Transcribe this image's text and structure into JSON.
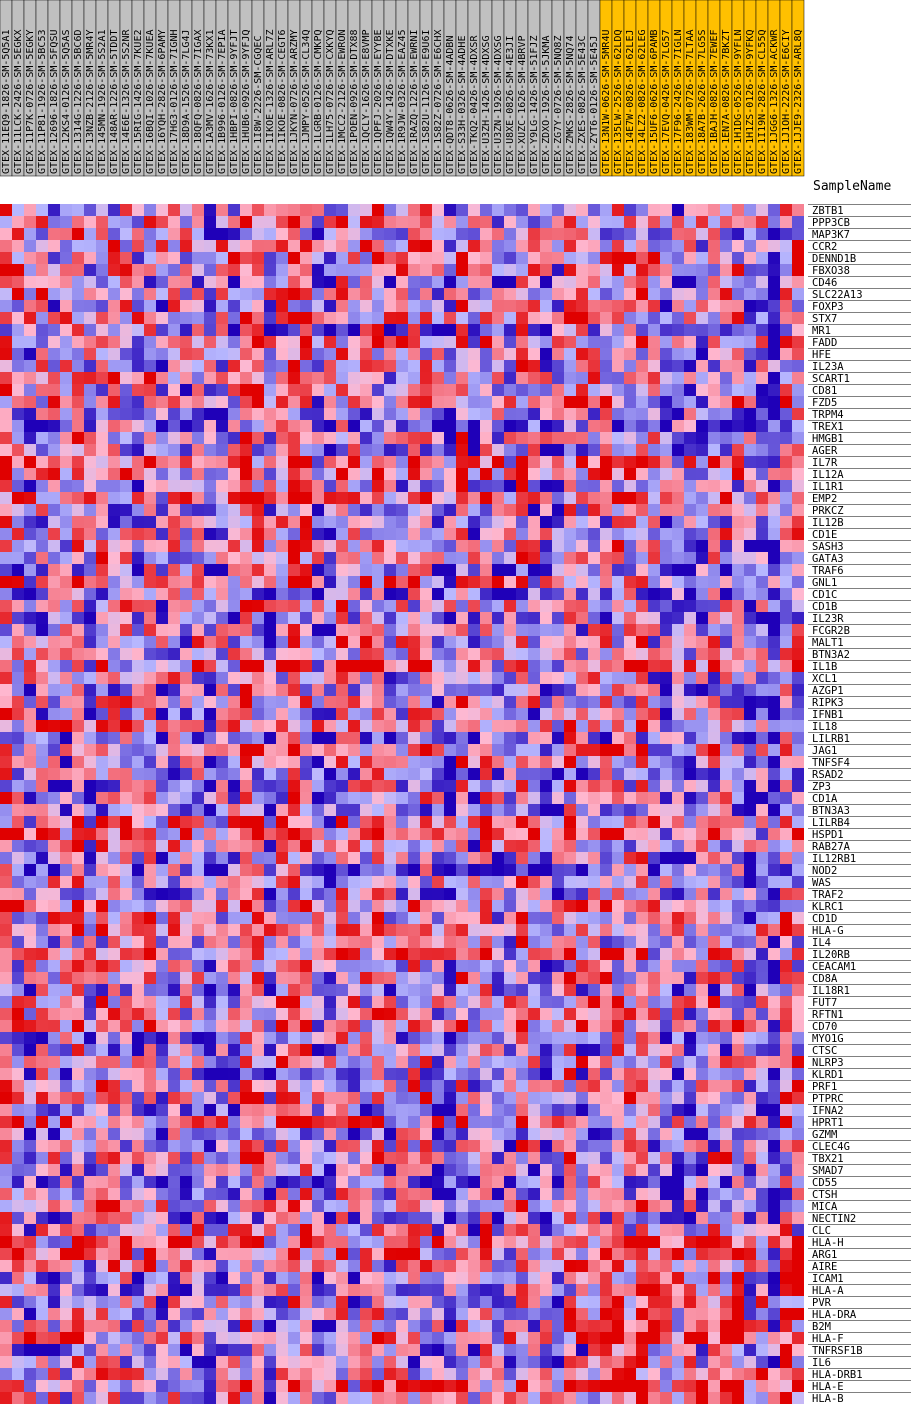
{
  "chart_data": {
    "type": "heatmap",
    "corner_label": "SampleName",
    "samples": [
      "GTEX-11EQ9-1826-SM-5Q5A1",
      "GTEX-11LCK-2426-SM-5EGKX",
      "GTEX-11P7K-0726-SM-5EGKY",
      "GTEX-11P81-1926-SM-5BC53",
      "GTEX-12696-1826-SM-5FQSU",
      "GTEX-12KS4-0126-SM-5Q5AS",
      "GTEX-1314G-1226-SM-5BC6D",
      "GTEX-13NZB-2126-SM-5MR4Y",
      "GTEX-145MN-1926-SM-5S2A1",
      "GTEX-148AR-1226-SM-5TDDT",
      "GTEX-14E6E-1326-SM-5S2NR",
      "GTEX-15RIG-1426-SM-7KUE2",
      "GTEX-16BQI-1026-SM-7KUEA",
      "GTEX-16YQH-2826-SM-6PAMY",
      "GTEX-17HG3-0126-SM-7IGNH",
      "GTEX-18D9A-1526-SM-7LG4J",
      "GTEX-18QFQ-0826-SM-7IGAX",
      "GTEX-1A3MV-1626-SM-73KX1",
      "GTEX-1B996-0126-SM-7EPIA",
      "GTEX-1HBPI-0826-SM-9YFJT",
      "GTEX-1HUB6-0926-SM-9YFJQ",
      "GTEX-1I8W-2226-SM-CGQEC",
      "GTEX-1IKOE-1326-SM-ARL7Z",
      "GTEX-1IKOE-0826-SM-CEGT6",
      "GTEX-1JKYN-0726-SM-ARZMY",
      "GTEX-1JMPY-0526-SM-CL34Q",
      "GTEX-1LGRB-0126-SM-CMKPQ",
      "GTEX-1LH75-0726-SM-CXKYQ",
      "GTEX-1MCC2-2126-SM-EWRON",
      "GTEX-1POEN-0926-SM-DTX88",
      "GTEX-1QCLY-1626-SM-E8VMP",
      "GTEX-1QPFJ-2026-SM-EYYBE",
      "GTEX-1QW4Y-1426-SM-DTXKE",
      "GTEX-1R9JW-0326-SM-EAZ45",
      "GTEX-1RAZQ-1226-SM-EWRNI",
      "GTEX-1S82U-1126-SM-E9U6I",
      "GTEX-1S82Z-0726-SM-E6CHX",
      "GTEX-QDT8-0626-SM-4ADBN",
      "GTEX-S33H-0326-SM-4ADHE",
      "GTEX-TKQ2-0426-SM-4DXSR",
      "GTEX-U3ZH-1426-SM-4DXSG",
      "GTEX-U3ZN-1926-SM-4DXSG",
      "GTEX-U8XE-0826-SM-4E3JI",
      "GTEX-XUZC-1626-SM-4BRVP",
      "GTEX-Y9LG-1426-SM-51FJZ",
      "GTEX-ZDXO-1926-SM-5JKMA",
      "GTEX-ZG7Y-0726-SM-5NQ8Z",
      "GTEX-ZMKS-2826-SM-5NQ74",
      "GTEX-ZXES-0826-SM-5E43C",
      "GTEX-ZYT6-0126-SM-5E45J",
      "GTEX-13N1W-0626-SM-5MR4U",
      "GTEX-135LW-2526-SM-62LDQ",
      "GTEX-14E7W-0826-SM-62LEJ",
      "GTEX-14LZ2-0826-SM-62LEG",
      "GTEX-15UF6-0626-SM-6PAMB",
      "GTEX-17EVQ-0426-SM-7LG57",
      "GTEX-17F96-2426-SM-7IGLN",
      "GTEX-183WM-0726-SM-7LTAA",
      "GTEX-18A7B-2626-SM-7LG5S",
      "GTEX-1BAJH-0826-SM-7EWEF",
      "GTEX-1EN7A-0826-SM-7BKZT",
      "GTEX-1H1DG-0526-SM-9YFLN",
      "GTEX-1H1ZS-0126-SM-9YFKQ",
      "GTEX-1I19N-2826-SM-CL55Q",
      "GTEX-1JGG6-1326-SM-ACKWR",
      "GTEX-1J1OH-2226-SM-E6CIY",
      "GTEX-1JJE9-2326-SM-ARL8Q"
    ],
    "highlighted_samples_from": 50,
    "genes": [
      "ZBTB1",
      "PPP3CB",
      "MAP3K7",
      "CCR2",
      "DENND1B",
      "FBXO38",
      "CD46",
      "SLC22A13",
      "FOXP3",
      "STX7",
      "MR1",
      "FADD",
      "HFE",
      "IL23A",
      "SCART1",
      "CD81",
      "FZD5",
      "TRPM4",
      "TREX1",
      "HMGB1",
      "AGER",
      "IL7R",
      "IL12A",
      "IL1R1",
      "EMP2",
      "PRKCZ",
      "IL12B",
      "CD1E",
      "SASH3",
      "GATA3",
      "TRAF6",
      "GNL1",
      "CD1C",
      "CD1B",
      "IL23R",
      "FCGR2B",
      "MALT1",
      "BTN3A2",
      "IL1B",
      "XCL1",
      "AZGP1",
      "RIPK3",
      "IFNB1",
      "IL18",
      "LILRB1",
      "JAG1",
      "TNFSF4",
      "RSAD2",
      "ZP3",
      "CD1A",
      "BTN3A3",
      "LILRB4",
      "HSPD1",
      "RAB27A",
      "IL12RB1",
      "NOD2",
      "WAS",
      "TRAF2",
      "KLRC1",
      "CD1D",
      "HLA-G",
      "IL4",
      "IL20RB",
      "CEACAM1",
      "CD8A",
      "IL18R1",
      "FUT7",
      "RFTN1",
      "CD70",
      "MYO1G",
      "CTSC",
      "NLRP3",
      "KLRD1",
      "PRF1",
      "PTPRC",
      "IFNA2",
      "HPRT1",
      "GZMM",
      "CLEC4G",
      "TBX21",
      "SMAD7",
      "CD55",
      "CTSH",
      "MICA",
      "NECTIN2",
      "CLC",
      "HLA-H",
      "ARG1",
      "AIRE",
      "ICAM1",
      "HLA-A",
      "PVR",
      "HLA-DRA",
      "B2M",
      "HLA-F",
      "TNFRSF1B",
      "IL6",
      "HLA-DRB1",
      "HLA-E",
      "HLA-B"
    ],
    "color_scale": {
      "low": "#1f00b8",
      "mid_low": "#b8b8ff",
      "mid_high": "#ffb8d0",
      "high": "#e00000",
      "sample_label_bg": "#c0c0c0",
      "highlight_label_bg": "#ffc000"
    },
    "seed": 48271
  }
}
